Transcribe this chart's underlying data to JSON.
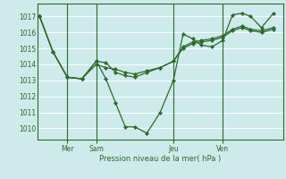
{
  "bg_color": "#ceeaea",
  "grid_color": "#ffffff",
  "line_color": "#2d6a2d",
  "marker_color": "#2d6a2d",
  "tick_label_color": "#2d6a2d",
  "axis_label_color": "#2d6a2d",
  "xlabel": "Pression niveau de la mer( hPa )",
  "ylim": [
    1009.3,
    1017.8
  ],
  "yticks": [
    1010,
    1011,
    1012,
    1013,
    1014,
    1015,
    1016,
    1017
  ],
  "day_positions": [
    0.115,
    0.235,
    0.555,
    0.76
  ],
  "day_labels": [
    "Mer",
    "Sam",
    "Jeu",
    "Ven"
  ],
  "series1_x": [
    0.0,
    0.055,
    0.115,
    0.175,
    0.235,
    0.275,
    0.315,
    0.355,
    0.395,
    0.445,
    0.5,
    0.555,
    0.595,
    0.635,
    0.67,
    0.715,
    0.76,
    0.8,
    0.84,
    0.875,
    0.92,
    0.97
  ],
  "series1_y": [
    1017.0,
    1014.8,
    1013.2,
    1013.1,
    1014.2,
    1013.1,
    1011.6,
    1010.1,
    1010.1,
    1009.7,
    1011.0,
    1013.0,
    1015.9,
    1015.6,
    1015.2,
    1015.1,
    1015.5,
    1017.1,
    1017.2,
    1017.0,
    1016.3,
    1017.2
  ],
  "series2_x": [
    0.0,
    0.055,
    0.115,
    0.175,
    0.235,
    0.275,
    0.315,
    0.355,
    0.395,
    0.445,
    0.5,
    0.555,
    0.595,
    0.635,
    0.67,
    0.715,
    0.76,
    0.8,
    0.84,
    0.875,
    0.92,
    0.97
  ],
  "series2_y": [
    1017.0,
    1014.8,
    1013.2,
    1013.1,
    1014.2,
    1014.1,
    1013.5,
    1013.3,
    1013.2,
    1013.5,
    1013.8,
    1014.2,
    1015.0,
    1015.3,
    1015.4,
    1015.5,
    1015.7,
    1016.1,
    1016.3,
    1016.1,
    1016.0,
    1016.2
  ],
  "series3_x": [
    0.0,
    0.055,
    0.115,
    0.175,
    0.235,
    0.275,
    0.315,
    0.355,
    0.395,
    0.445,
    0.5,
    0.555,
    0.595,
    0.635,
    0.67,
    0.715,
    0.76,
    0.8,
    0.84,
    0.875,
    0.92,
    0.97
  ],
  "series3_y": [
    1017.0,
    1014.8,
    1013.2,
    1013.1,
    1014.0,
    1013.8,
    1013.7,
    1013.5,
    1013.4,
    1013.6,
    1013.8,
    1014.2,
    1015.1,
    1015.4,
    1015.5,
    1015.6,
    1015.8,
    1016.2,
    1016.4,
    1016.2,
    1016.1,
    1016.3
  ]
}
